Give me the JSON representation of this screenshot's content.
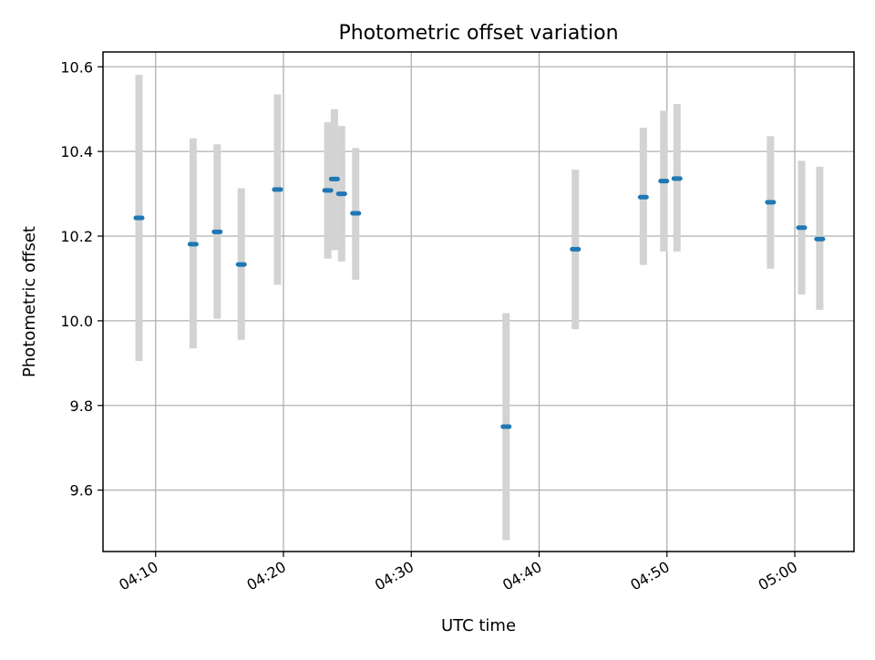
{
  "chart_data": {
    "type": "scatter",
    "title": "Photometric offset variation",
    "xlabel": "UTC time",
    "ylabel": "Photometric offset",
    "x_axis_kind": "time",
    "xlim": [
      "04:05:53",
      "05:04:38"
    ],
    "ylim": [
      9.455,
      10.635
    ],
    "grid": true,
    "x_ticks": [
      "04:10",
      "04:20",
      "04:30",
      "04:40",
      "04:50",
      "05:00"
    ],
    "y_ticks": [
      "9.6",
      "9.8",
      "10.0",
      "10.2",
      "10.4",
      "10.6"
    ],
    "series": [
      {
        "points": [
          {
            "x": "04:08:42",
            "y": 10.243,
            "low": 9.905,
            "high": 10.581
          },
          {
            "x": "04:12:56",
            "y": 10.181,
            "low": 9.935,
            "high": 10.431
          },
          {
            "x": "04:14:49",
            "y": 10.21,
            "low": 10.005,
            "high": 10.417
          },
          {
            "x": "04:16:42",
            "y": 10.133,
            "low": 9.955,
            "high": 10.313
          },
          {
            "x": "04:19:32",
            "y": 10.31,
            "low": 10.085,
            "high": 10.535
          },
          {
            "x": "04:23:28",
            "y": 10.308,
            "low": 10.147,
            "high": 10.469
          },
          {
            "x": "04:23:59",
            "y": 10.335,
            "low": 10.167,
            "high": 10.5
          },
          {
            "x": "04:24:33",
            "y": 10.3,
            "low": 10.14,
            "high": 10.46
          },
          {
            "x": "04:25:39",
            "y": 10.254,
            "low": 10.097,
            "high": 10.408
          },
          {
            "x": "04:37:25",
            "y": 9.75,
            "low": 9.482,
            "high": 10.018
          },
          {
            "x": "04:42:50",
            "y": 10.169,
            "low": 9.98,
            "high": 10.357
          },
          {
            "x": "04:48:09",
            "y": 10.292,
            "low": 10.132,
            "high": 10.456
          },
          {
            "x": "04:49:45",
            "y": 10.33,
            "low": 10.164,
            "high": 10.496
          },
          {
            "x": "04:50:47",
            "y": 10.336,
            "low": 10.164,
            "high": 10.512
          },
          {
            "x": "04:58:06",
            "y": 10.28,
            "low": 10.123,
            "high": 10.436
          },
          {
            "x": "05:00:32",
            "y": 10.22,
            "low": 10.062,
            "high": 10.378
          },
          {
            "x": "05:01:57",
            "y": 10.193,
            "low": 10.026,
            "high": 10.364
          }
        ]
      }
    ],
    "marker_color": "#1f77b4",
    "errorbar_color": "#d3d3d3",
    "grid_color": "#b0b0b0"
  }
}
